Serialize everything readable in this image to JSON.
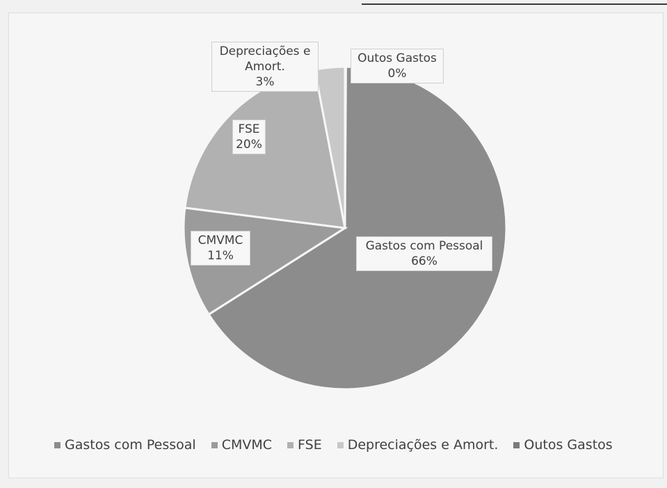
{
  "chart_data": {
    "type": "pie",
    "title": "",
    "legend_position": "bottom",
    "slices": [
      {
        "name": "Gastos com Pessoal",
        "value": 66,
        "label": "66%",
        "color": "#8c8c8c"
      },
      {
        "name": "CMVMC",
        "value": 11,
        "label": "11%",
        "color": "#9b9b9b"
      },
      {
        "name": "FSE",
        "value": 20,
        "label": "20%",
        "color": "#b1b1b1"
      },
      {
        "name": "Depreciações e Amort.",
        "value": 3,
        "label": "3%",
        "color": "#c8c8c8"
      },
      {
        "name": "Outos Gastos",
        "value": 0,
        "label": "0%",
        "color": "#7a7a7a"
      }
    ]
  },
  "labels": {
    "pessoal_name": "Gastos com Pessoal",
    "pessoal_pct": "66%",
    "cmvmc_name": "CMVMC",
    "cmvmc_pct": "11%",
    "fse_name": "FSE",
    "fse_pct": "20%",
    "dep_name_1": "Depreciações e",
    "dep_name_2": "Amort.",
    "dep_pct": "3%",
    "outros_name": "Outos Gastos",
    "outros_pct": "0%"
  },
  "legend": [
    {
      "label": "Gastos com Pessoal",
      "color": "#8c8c8c"
    },
    {
      "label": "CMVMC",
      "color": "#9b9b9b"
    },
    {
      "label": "FSE",
      "color": "#b1b1b1"
    },
    {
      "label": "Depreciações e Amort.",
      "color": "#c8c8c8"
    },
    {
      "label": "Outos Gastos",
      "color": "#7a7a7a"
    }
  ]
}
